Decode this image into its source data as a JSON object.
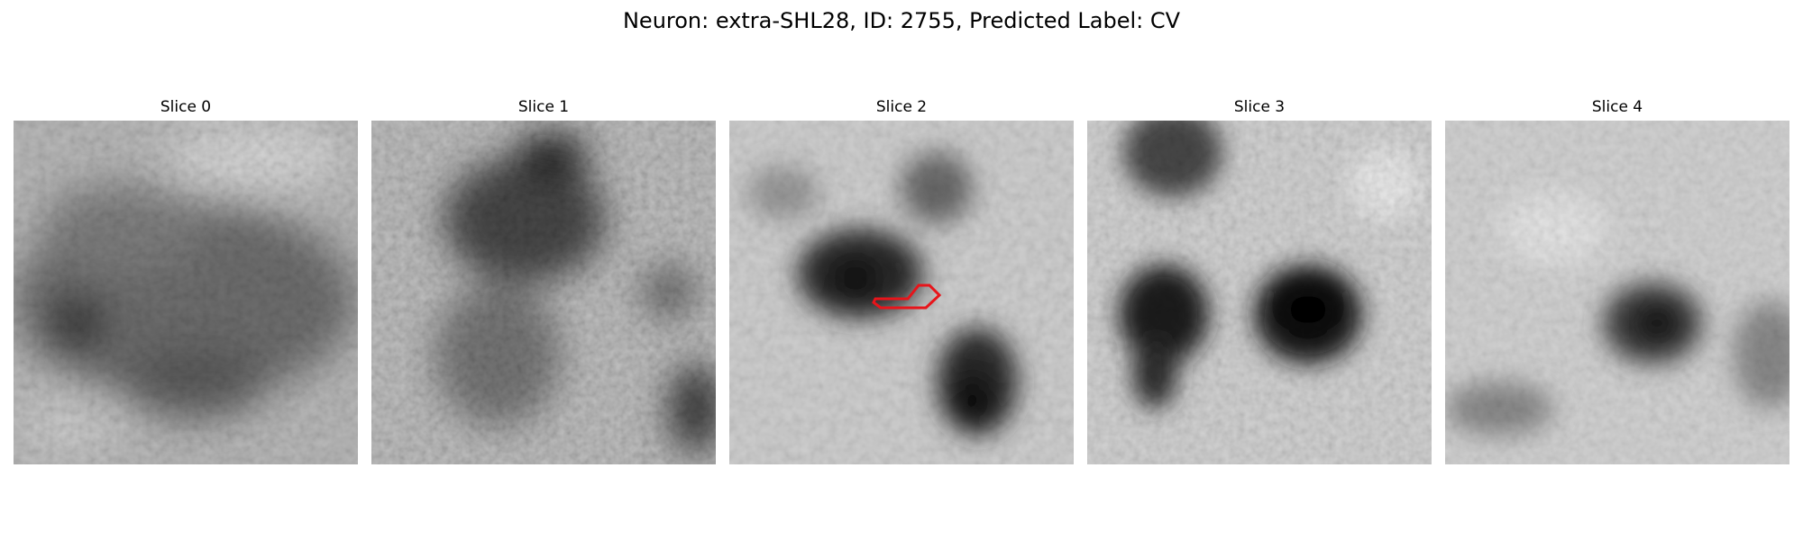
{
  "figure": {
    "title": "Neuron: extra-SHL28, ID: 2755, Predicted Label: CV"
  },
  "panels": [
    {
      "title": "Slice 0"
    },
    {
      "title": "Slice 1"
    },
    {
      "title": "Slice 2"
    },
    {
      "title": "Slice 3"
    },
    {
      "title": "Slice 4"
    }
  ],
  "colors": {
    "contour": "#e8141a",
    "background": "#ffffff"
  }
}
